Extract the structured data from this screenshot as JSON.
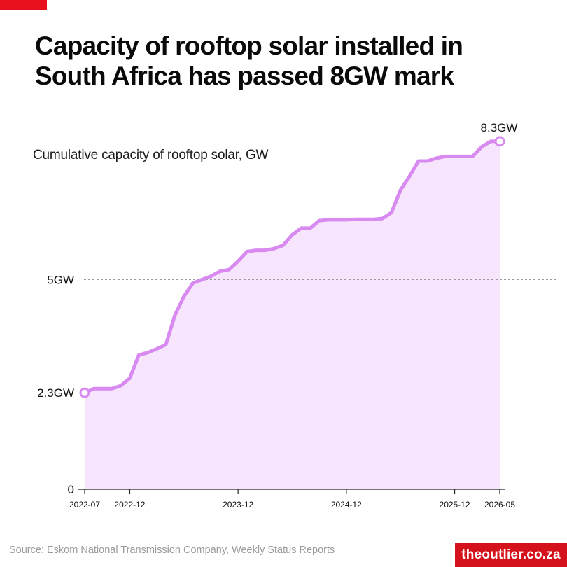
{
  "colors": {
    "accent": "#e8101c",
    "line": "#d88af0",
    "area": "#f6e5fd",
    "reference": "#999999",
    "axis": "#222222",
    "brand_bg": "#d5121c"
  },
  "header": {
    "title": "Capacity of rooftop solar installed in South Africa has passed 8GW mark"
  },
  "footer": {
    "source": "Source: Eskom National Transmission Company, Weekly Status Reports",
    "brand": "theoutlier.co.za"
  },
  "chart_data": {
    "type": "area",
    "title": "Cumulative capacity of rooftop solar, GW",
    "unit": "GW",
    "x": [
      "2022-07",
      "2022-08",
      "2022-09",
      "2022-10",
      "2022-11",
      "2022-12",
      "2023-01",
      "2023-02",
      "2023-03",
      "2023-04",
      "2023-05",
      "2023-06",
      "2023-07",
      "2023-08",
      "2023-09",
      "2023-10",
      "2023-11",
      "2023-12",
      "2024-01",
      "2024-02",
      "2024-03",
      "2024-04",
      "2024-05",
      "2024-06",
      "2024-07",
      "2024-08",
      "2024-09",
      "2024-10",
      "2024-11",
      "2024-12",
      "2025-01",
      "2025-02",
      "2025-03",
      "2025-04",
      "2025-05",
      "2025-06",
      "2025-07",
      "2025-08",
      "2025-09",
      "2025-10",
      "2025-11",
      "2025-12",
      "2026-01",
      "2026-02",
      "2026-03",
      "2026-04",
      "2026-05"
    ],
    "values": [
      2.3,
      2.4,
      2.4,
      2.4,
      2.47,
      2.65,
      3.2,
      3.26,
      3.35,
      3.45,
      4.15,
      4.6,
      4.92,
      5.0,
      5.08,
      5.2,
      5.24,
      5.44,
      5.67,
      5.7,
      5.7,
      5.74,
      5.82,
      6.07,
      6.23,
      6.23,
      6.41,
      6.43,
      6.43,
      6.43,
      6.44,
      6.44,
      6.44,
      6.46,
      6.6,
      7.14,
      7.47,
      7.83,
      7.83,
      7.9,
      7.94,
      7.94,
      7.94,
      7.94,
      8.17,
      8.3,
      8.3
    ],
    "x_ticks": [
      "2022-07",
      "2022-12",
      "2023-12",
      "2024-12",
      "2025-12",
      "2026-05"
    ],
    "y_labels": [
      {
        "value": 0,
        "label": "0"
      },
      {
        "value": 5,
        "label": "5GW"
      }
    ],
    "reference_line": {
      "value": 5
    },
    "annotations": [
      {
        "index": 0,
        "label": "2.3GW"
      },
      {
        "index": 46,
        "label": "8.3GW"
      }
    ],
    "ylim": [
      0,
      9.5
    ],
    "grid": false
  }
}
